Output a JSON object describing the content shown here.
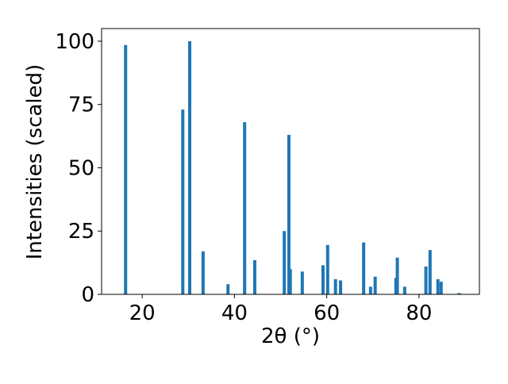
{
  "chart_data": {
    "type": "bar",
    "x_label": "2θ (°)",
    "y_label": "Intensities (scaled)",
    "color": "#1f77b4",
    "x": [
      16.4,
      28.8,
      30.3,
      33.2,
      38.6,
      42.2,
      44.4,
      50.8,
      51.8,
      52.1,
      54.7,
      59.2,
      60.2,
      61.9,
      63.0,
      68.0,
      69.5,
      70.5,
      75.0,
      75.3,
      76.9,
      81.5,
      82.4,
      84.1,
      84.8,
      88.7
    ],
    "values": [
      98.5,
      73,
      100,
      17,
      4,
      68,
      13.5,
      25,
      63,
      10,
      9,
      11.5,
      19.5,
      6,
      5.5,
      20.5,
      3,
      7,
      6.5,
      14.5,
      3,
      11,
      17.5,
      6,
      5,
      0.5
    ],
    "xlim": [
      11.2,
      93.1
    ],
    "ylim": [
      0,
      105
    ],
    "xticks": [
      20,
      40,
      60,
      80
    ],
    "yticks": [
      0,
      25,
      50,
      75,
      100
    ]
  }
}
